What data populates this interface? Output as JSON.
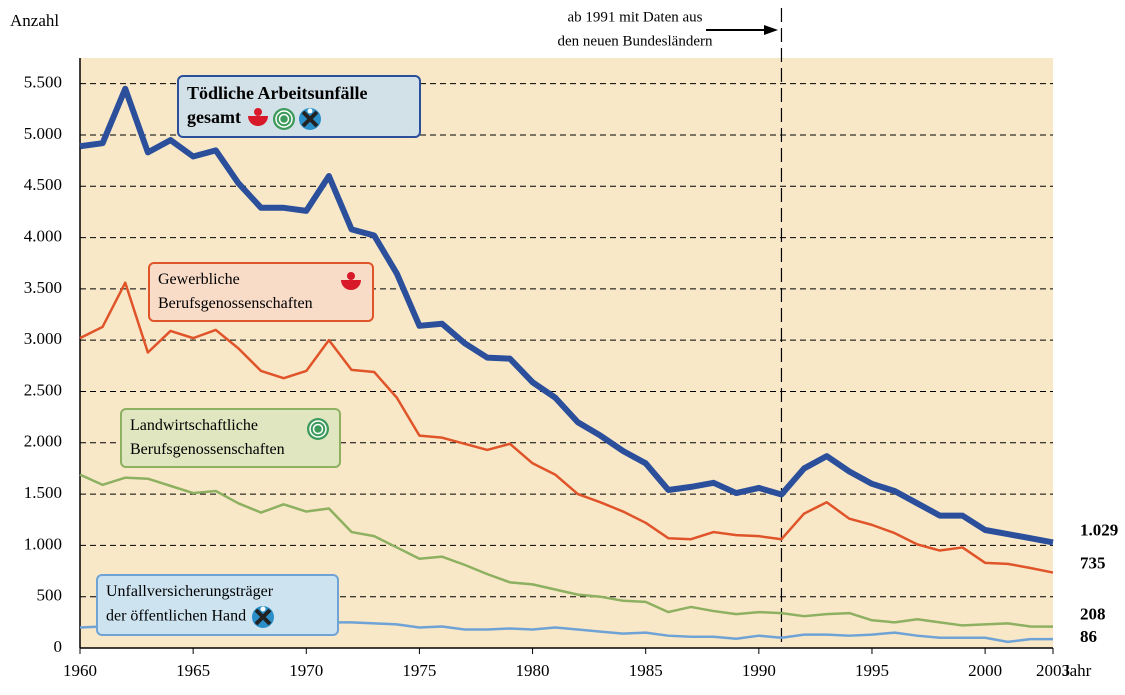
{
  "chart_data": {
    "type": "line",
    "y_label": "Anzahl",
    "x_label": "Jahr",
    "x": [
      1960,
      1961,
      1962,
      1963,
      1964,
      1965,
      1966,
      1967,
      1968,
      1969,
      1970,
      1971,
      1972,
      1973,
      1974,
      1975,
      1976,
      1977,
      1978,
      1979,
      1980,
      1981,
      1982,
      1983,
      1984,
      1985,
      1986,
      1987,
      1988,
      1989,
      1990,
      1991,
      1992,
      1993,
      1994,
      1995,
      1996,
      1997,
      1998,
      1999,
      2000,
      2001,
      2002,
      2003
    ],
    "xlim": [
      1960,
      2003
    ],
    "xticks": [
      1960,
      1965,
      1970,
      1975,
      1980,
      1985,
      1990,
      1995,
      2000,
      2003
    ],
    "ylim": [
      0,
      5750
    ],
    "yticks": [
      0,
      500,
      {
        "value": 1000,
        "label": "1.000"
      },
      {
        "value": 1500,
        "label": "1.500"
      },
      {
        "value": 2000,
        "label": "2.000"
      },
      {
        "value": 2500,
        "label": "2.500"
      },
      {
        "value": 3000,
        "label": "3.000"
      },
      {
        "value": 3500,
        "label": "3.500"
      },
      {
        "value": 4000,
        "label": "4.000"
      },
      {
        "value": 4500,
        "label": "4.500"
      },
      {
        "value": 5000,
        "label": "5.000"
      },
      {
        "value": 5500,
        "label": "5.500"
      }
    ],
    "grid": true,
    "vline": {
      "x": 1991,
      "label": [
        "ab 1991 mit Daten aus",
        "den neuen Bundesländern"
      ]
    },
    "series": [
      {
        "name": "Tödliche Arbeitsunfälle gesamt",
        "color": "#2c4f9c",
        "values": [
          4890,
          4920,
          5450,
          4830,
          4950,
          4790,
          4850,
          4530,
          4290,
          4290,
          4260,
          4600,
          4080,
          4020,
          3650,
          3140,
          3160,
          2970,
          2830,
          2820,
          2590,
          2440,
          2200,
          2070,
          1920,
          1800,
          1540,
          1570,
          1610,
          1510,
          1560,
          1496,
          1750,
          1870,
          1720,
          1600,
          1530,
          1410,
          1290,
          1290,
          1150,
          1110,
          1070,
          1029
        ],
        "value_labels": [
          null,
          null,
          null,
          null,
          null,
          null,
          null,
          null,
          null,
          null,
          null,
          null,
          null,
          null,
          null,
          null,
          null,
          null,
          null,
          null,
          null,
          null,
          null,
          null,
          null,
          null,
          null,
          null,
          null,
          null,
          null,
          null,
          null,
          null,
          null,
          null,
          null,
          null,
          null,
          null,
          null,
          null,
          null,
          "1.029"
        ]
      },
      {
        "name": "Gewerbliche Berufsgenossenschaften",
        "color": "#e0542a",
        "values": [
          3020,
          3130,
          3560,
          2880,
          3090,
          3020,
          3100,
          2920,
          2700,
          2630,
          2700,
          3000,
          2710,
          2690,
          2440,
          2070,
          2050,
          1990,
          1930,
          1990,
          1800,
          1690,
          1500,
          1420,
          1330,
          1220,
          1070,
          1060,
          1130,
          1100,
          1090,
          1060,
          1310,
          1420,
          1260,
          1200,
          1120,
          1010,
          950,
          980,
          830,
          820,
          780,
          735
        ],
        "value_labels": [
          null,
          null,
          null,
          null,
          null,
          null,
          null,
          null,
          null,
          null,
          null,
          null,
          null,
          null,
          null,
          null,
          null,
          null,
          null,
          null,
          null,
          null,
          null,
          null,
          null,
          null,
          null,
          null,
          null,
          null,
          null,
          null,
          null,
          null,
          null,
          null,
          null,
          null,
          null,
          null,
          null,
          null,
          null,
          "735"
        ]
      },
      {
        "name": "Landwirtschaftliche Berufsgenossenschaften",
        "color": "#8db061",
        "values": [
          1690,
          1590,
          1660,
          1650,
          1580,
          1510,
          1530,
          1410,
          1320,
          1400,
          1330,
          1360,
          1130,
          1090,
          980,
          870,
          890,
          810,
          720,
          640,
          620,
          570,
          520,
          500,
          460,
          450,
          350,
          400,
          360,
          330,
          350,
          340,
          310,
          330,
          340,
          270,
          250,
          280,
          250,
          220,
          230,
          240,
          210,
          208
        ],
        "value_labels": [
          null,
          null,
          null,
          null,
          null,
          null,
          null,
          null,
          null,
          null,
          null,
          null,
          null,
          null,
          null,
          null,
          null,
          null,
          null,
          null,
          null,
          null,
          null,
          null,
          null,
          null,
          null,
          null,
          null,
          null,
          null,
          null,
          null,
          null,
          null,
          null,
          null,
          null,
          null,
          null,
          null,
          null,
          null,
          "208"
        ]
      },
      {
        "name": "Unfallversicherungsträger der öffentlichen Hand",
        "color": "#6fa3d6",
        "values": [
          200,
          210,
          220,
          300,
          270,
          250,
          230,
          210,
          280,
          270,
          240,
          250,
          250,
          240,
          230,
          200,
          210,
          180,
          180,
          190,
          180,
          200,
          180,
          160,
          140,
          150,
          120,
          110,
          110,
          90,
          120,
          100,
          130,
          130,
          120,
          130,
          150,
          120,
          100,
          100,
          100,
          60,
          86,
          86
        ],
        "value_labels": [
          null,
          null,
          null,
          null,
          null,
          null,
          null,
          null,
          null,
          null,
          null,
          null,
          null,
          null,
          null,
          null,
          null,
          null,
          null,
          null,
          null,
          null,
          null,
          null,
          null,
          null,
          null,
          null,
          null,
          null,
          null,
          null,
          null,
          null,
          null,
          null,
          null,
          null,
          null,
          null,
          null,
          null,
          null,
          "86"
        ]
      }
    ]
  }
}
